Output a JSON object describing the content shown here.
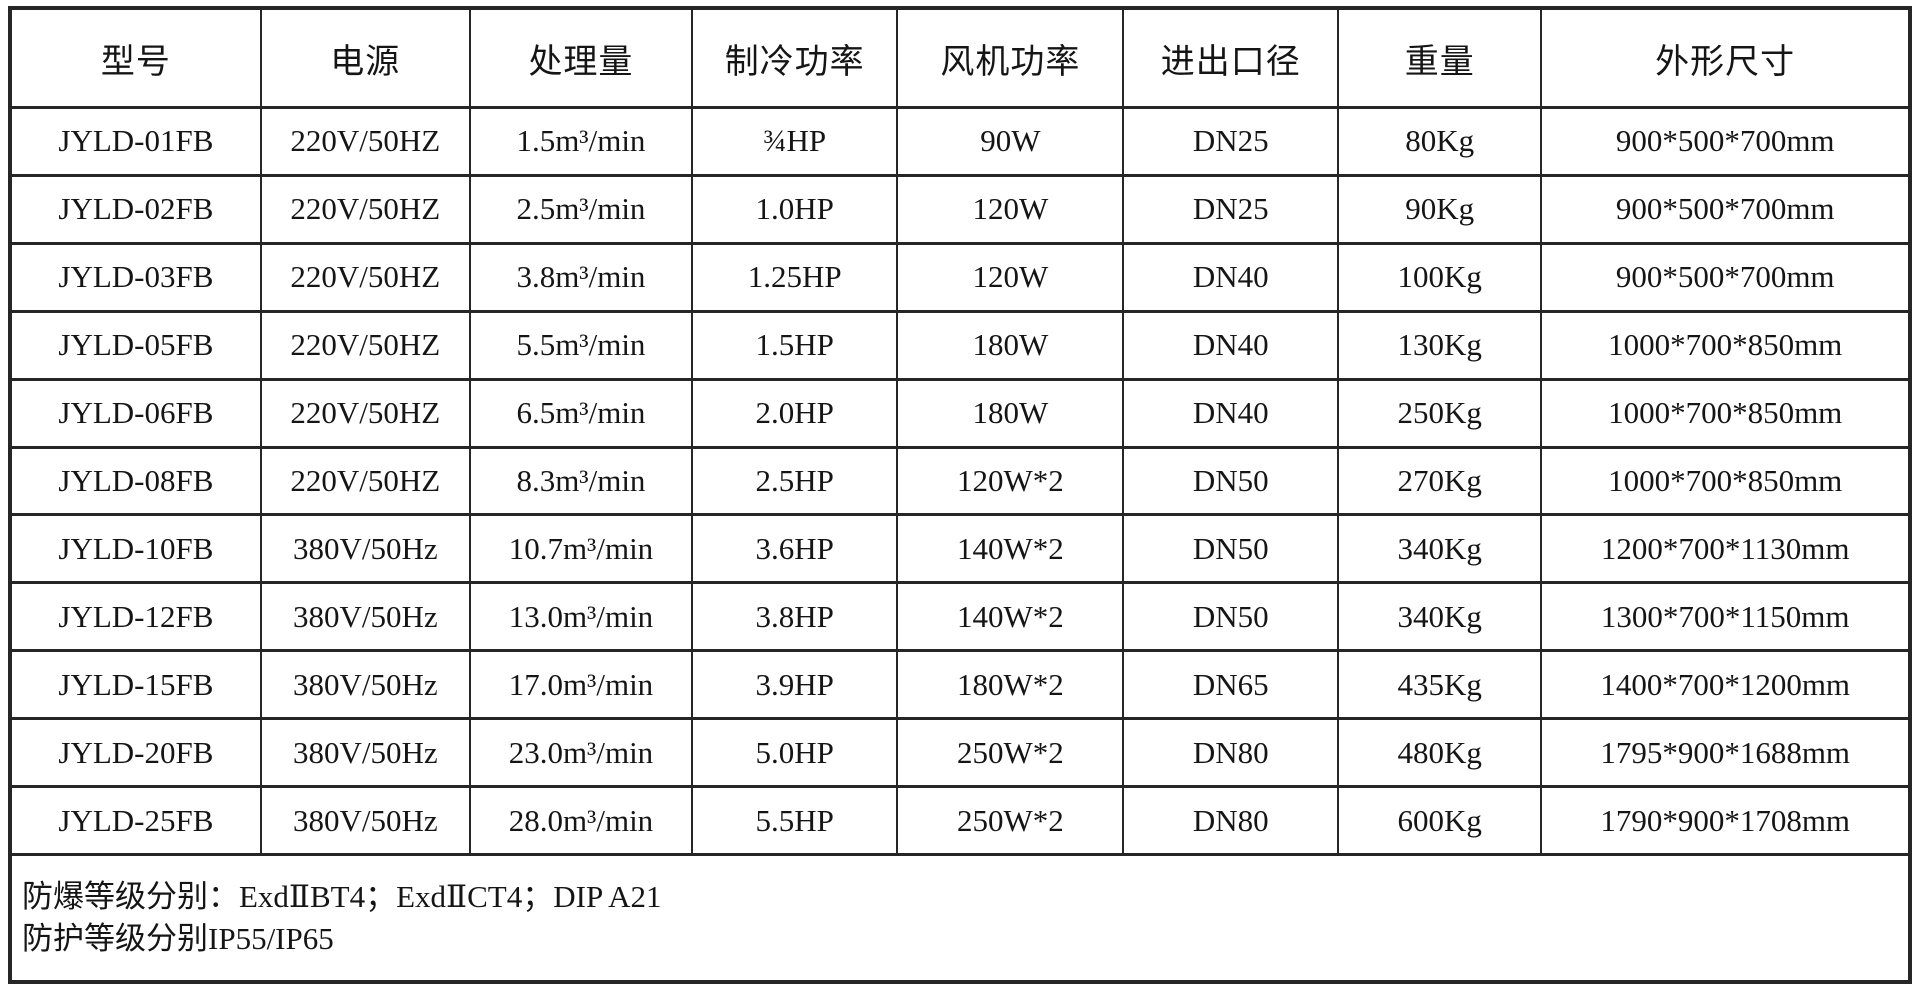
{
  "table": {
    "headers": [
      {
        "key": "model",
        "label": "型号"
      },
      {
        "key": "power",
        "label": "电源"
      },
      {
        "key": "capacity",
        "label": "处理量"
      },
      {
        "key": "cooling",
        "label": "制冷功率"
      },
      {
        "key": "fan",
        "label": "风机功率"
      },
      {
        "key": "port",
        "label": "进出口径"
      },
      {
        "key": "weight",
        "label": "重量"
      },
      {
        "key": "size",
        "label": "外形尺寸"
      }
    ],
    "rows": [
      [
        "JYLD-01FB",
        "220V/50HZ",
        "1.5m³/min",
        "¾HP",
        "90W",
        "DN25",
        "80Kg",
        "900*500*700mm"
      ],
      [
        "JYLD-02FB",
        "220V/50HZ",
        "2.5m³/min",
        "1.0HP",
        "120W",
        "DN25",
        "90Kg",
        "900*500*700mm"
      ],
      [
        "JYLD-03FB",
        "220V/50HZ",
        "3.8m³/min",
        "1.25HP",
        "120W",
        "DN40",
        "100Kg",
        "900*500*700mm"
      ],
      [
        "JYLD-05FB",
        "220V/50HZ",
        "5.5m³/min",
        "1.5HP",
        "180W",
        "DN40",
        "130Kg",
        "1000*700*850mm"
      ],
      [
        "JYLD-06FB",
        "220V/50HZ",
        "6.5m³/min",
        "2.0HP",
        "180W",
        "DN40",
        "250Kg",
        "1000*700*850mm"
      ],
      [
        "JYLD-08FB",
        "220V/50HZ",
        "8.3m³/min",
        "2.5HP",
        "120W*2",
        "DN50",
        "270Kg",
        "1000*700*850mm"
      ],
      [
        "JYLD-10FB",
        "380V/50Hz",
        "10.7m³/min",
        "3.6HP",
        "140W*2",
        "DN50",
        "340Kg",
        "1200*700*1130mm"
      ],
      [
        "JYLD-12FB",
        "380V/50Hz",
        "13.0m³/min",
        "3.8HP",
        "140W*2",
        "DN50",
        "340Kg",
        "1300*700*1150mm"
      ],
      [
        "JYLD-15FB",
        "380V/50Hz",
        "17.0m³/min",
        "3.9HP",
        "180W*2",
        "DN65",
        "435Kg",
        "1400*700*1200mm"
      ],
      [
        "JYLD-20FB",
        "380V/50Hz",
        "23.0m³/min",
        "5.0HP",
        "250W*2",
        "DN80",
        "480Kg",
        "1795*900*1688mm"
      ],
      [
        "JYLD-25FB",
        "380V/50Hz",
        "28.0m³/min",
        "5.5HP",
        "250W*2",
        "DN80",
        "600Kg",
        "1790*900*1708mm"
      ]
    ],
    "column_widths_pct": [
      13.2,
      11.0,
      11.7,
      10.8,
      11.9,
      11.3,
      10.7,
      19.4
    ],
    "footer_lines": [
      "防爆等级分别：ExdⅡBT4；ExdⅡCT4；DIP A21",
      "防护等级分别IP55/IP65"
    ],
    "colors": {
      "border": "#262626",
      "text": "#151515",
      "background": "#ffffff"
    }
  }
}
